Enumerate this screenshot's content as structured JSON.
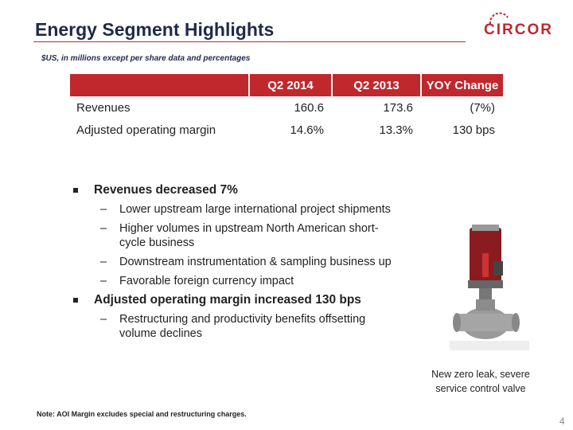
{
  "header": {
    "title": "Energy Segment Highlights",
    "logo": "CIRCOR",
    "subtitle": "$US, in millions except per share data and percentages"
  },
  "table": {
    "columns": [
      "Q2 2014",
      "Q2 2013",
      "YOY Change"
    ],
    "rows": [
      [
        "Revenues",
        "160.6",
        "173.6",
        "(7%)"
      ],
      [
        "Adjusted operating margin",
        "14.6%",
        "13.3%",
        "130 bps"
      ]
    ]
  },
  "bullets": [
    {
      "text": "Revenues decreased 7%",
      "subs": [
        "Lower upstream large international project shipments",
        "Higher volumes in upstream North American short-cycle business",
        "Downstream instrumentation & sampling business up",
        "Favorable foreign currency impact"
      ]
    },
    {
      "text": "Adjusted operating margin increased 130 bps",
      "subs": [
        "Restructuring and productivity benefits offsetting volume declines"
      ]
    }
  ],
  "image_caption": "New zero leak, severe service control valve",
  "note": "Note:  AOI Margin excludes special and restructuring charges.",
  "page_number": "4"
}
